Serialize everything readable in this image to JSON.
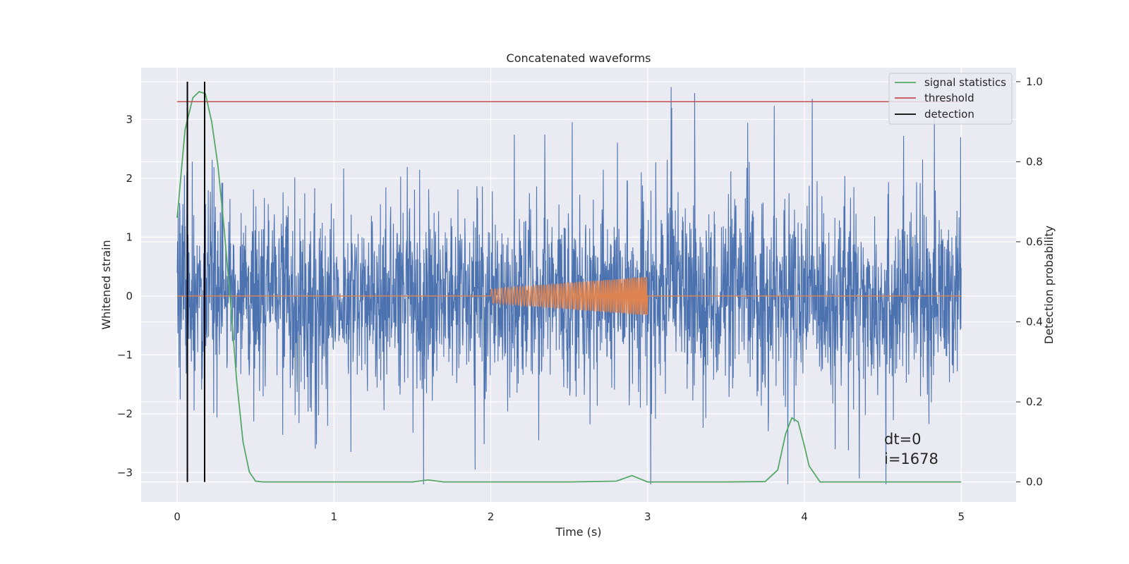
{
  "chart_data": {
    "type": "line",
    "title": "Concatenated waveforms",
    "xlabel": "Time (s)",
    "ylabel": "Whitened strain",
    "y2label": "Detection probability",
    "xlim": [
      -0.23,
      5.35
    ],
    "ylim": [
      -3.5,
      3.88
    ],
    "y2lim": [
      -0.05,
      1.035
    ],
    "xticks": [
      0,
      1,
      2,
      3,
      4,
      5
    ],
    "yticks": [
      -3,
      -2,
      -1,
      0,
      1,
      2,
      3
    ],
    "y2ticks": [
      0.0,
      0.2,
      0.4,
      0.6,
      0.8,
      1.0
    ],
    "xtick_labels": [
      "0",
      "1",
      "2",
      "3",
      "4",
      "5"
    ],
    "ytick_labels": [
      "−3",
      "−2",
      "−1",
      "0",
      "1",
      "2",
      "3"
    ],
    "y2tick_labels": [
      "0.0",
      "0.2",
      "0.4",
      "0.6",
      "0.8",
      "1.0"
    ],
    "grid": true,
    "legend_position": "top-right",
    "legend": [
      {
        "label": "signal statistics",
        "color": "#55a868"
      },
      {
        "label": "threshold",
        "color": "#c44e52"
      },
      {
        "label": "detection",
        "color": "#000000"
      }
    ],
    "colors": {
      "background": "#eaeaf2",
      "grid": "#ffffff",
      "noise": "#4c72b0",
      "waveform": "#dd8452"
    },
    "series": [
      {
        "role": "noise",
        "axis": "left",
        "x_range": [
          0,
          5
        ],
        "approx_amplitude_bounds": [
          -3.2,
          3.55
        ],
        "notable_peaks": [
          {
            "x": 3.15,
            "y": 3.55
          },
          {
            "x": 3.3,
            "y": 3.45
          },
          {
            "x": 4.05,
            "y": 3.35
          },
          {
            "x": 1.9,
            "y": -2.95
          },
          {
            "x": 3.02,
            "y": -3.2
          },
          {
            "x": 4.35,
            "y": -3.1
          },
          {
            "x": 4.52,
            "y": -3.2
          }
        ]
      },
      {
        "role": "waveform",
        "axis": "left",
        "x_range": [
          0,
          5
        ],
        "burst": {
          "start": 2.0,
          "end": 3.0,
          "amplitude_start": 0.12,
          "amplitude_end": 0.33
        }
      },
      {
        "name": "signal statistics",
        "axis": "right",
        "x": [
          0.0,
          0.05,
          0.1,
          0.14,
          0.18,
          0.22,
          0.26,
          0.3,
          0.34,
          0.38,
          0.42,
          0.46,
          0.5,
          0.55,
          1.0,
          1.5,
          1.6,
          1.7,
          2.0,
          2.5,
          2.8,
          2.9,
          3.0,
          3.5,
          3.75,
          3.83,
          3.88,
          3.92,
          3.96,
          4.0,
          4.03,
          4.1,
          4.5,
          5.0
        ],
        "y": [
          0.66,
          0.88,
          0.96,
          0.975,
          0.97,
          0.9,
          0.79,
          0.63,
          0.45,
          0.25,
          0.1,
          0.025,
          0.002,
          0.0,
          0.0,
          0.0,
          0.005,
          0.0,
          0.0,
          0.0,
          0.002,
          0.016,
          0.0,
          0.0,
          0.001,
          0.03,
          0.12,
          0.16,
          0.15,
          0.09,
          0.04,
          0.0,
          0.0,
          0.0
        ]
      },
      {
        "name": "threshold",
        "axis": "right",
        "x": [
          0,
          5
        ],
        "y": [
          0.95,
          0.95
        ]
      },
      {
        "name": "detection",
        "axis": "right",
        "vlines": [
          0.065,
          0.175
        ],
        "y_range": [
          0.0,
          1.0
        ]
      }
    ],
    "annotations": {
      "dt": "dt=0",
      "index": "i=1678"
    }
  }
}
